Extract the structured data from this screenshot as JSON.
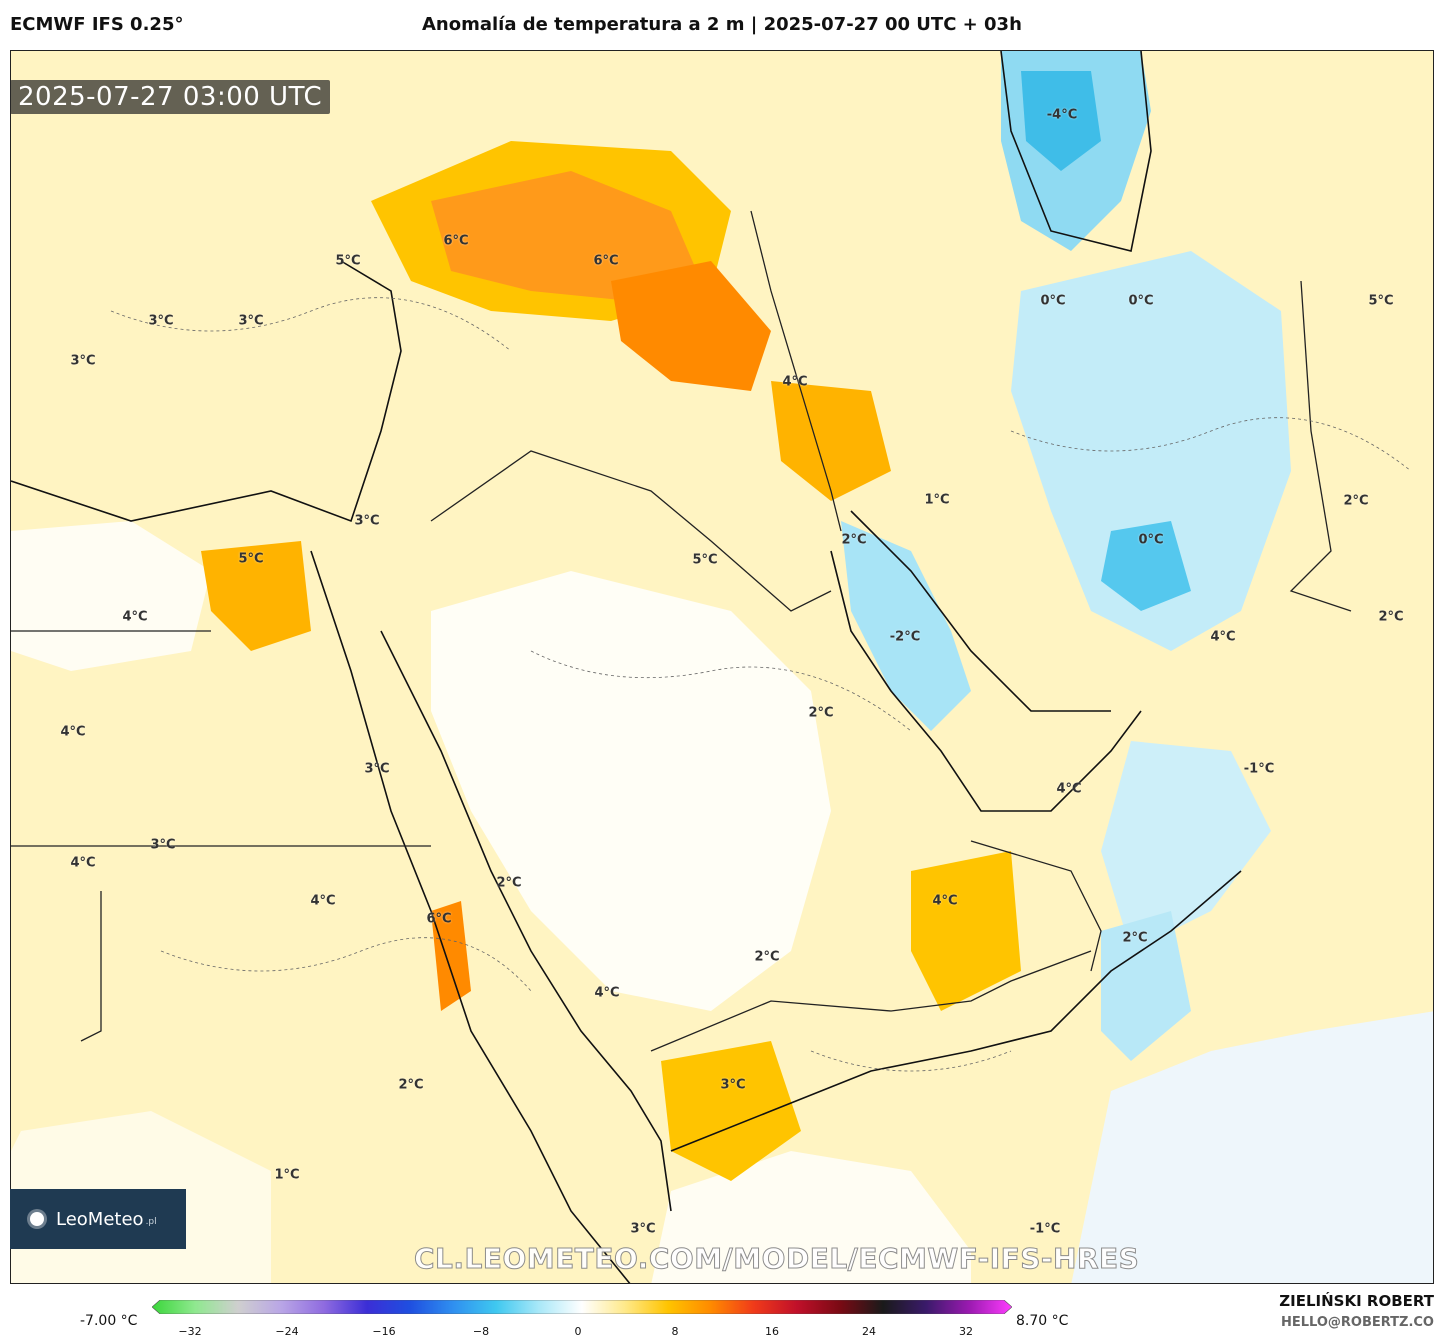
{
  "header": {
    "model": "ECMWF IFS 0.25°",
    "title": "Anomalía de temperatura a 2 m | 2025-07-27 00 UTC + 03h"
  },
  "valid_time": "2025-07-27 03:00 UTC",
  "watermark_url": "CL.LEOMETEO.COM/MODEL/ECMWF-IFS-HRES",
  "logo": {
    "name": "LeoMeteo",
    "tld": ".pl"
  },
  "map_labels": [
    {
      "text": "-4°C"
    },
    {
      "text": "6°C"
    },
    {
      "text": "6°C"
    },
    {
      "text": "5°C"
    },
    {
      "text": "3°C"
    },
    {
      "text": "3°C"
    },
    {
      "text": "3°C"
    },
    {
      "text": "0°C"
    },
    {
      "text": "0°C"
    },
    {
      "text": "5°C"
    },
    {
      "text": "4°C"
    },
    {
      "text": "1°C"
    },
    {
      "text": "3°C"
    },
    {
      "text": "5°C"
    },
    {
      "text": "2°C"
    },
    {
      "text": "5°C"
    },
    {
      "text": "0°C"
    },
    {
      "text": "2°C"
    },
    {
      "text": "4°C"
    },
    {
      "text": "-2°C"
    },
    {
      "text": "4°C"
    },
    {
      "text": "2°C"
    },
    {
      "text": "4°C"
    },
    {
      "text": "2°C"
    },
    {
      "text": "3°C"
    },
    {
      "text": "-1°C"
    },
    {
      "text": "4°C"
    },
    {
      "text": "3°C"
    },
    {
      "text": "4°C"
    },
    {
      "text": "2°C"
    },
    {
      "text": "4°C"
    },
    {
      "text": "6°C"
    },
    {
      "text": "4°C"
    },
    {
      "text": "2°C"
    },
    {
      "text": "2°C"
    },
    {
      "text": "4°C"
    },
    {
      "text": "2°C"
    },
    {
      "text": "3°C"
    },
    {
      "text": "1°C"
    },
    {
      "text": "3°C"
    },
    {
      "text": "-1°C"
    }
  ],
  "colorbar": {
    "min_label": "-7.00 °C",
    "max_label": "8.70 °C",
    "ticks": [
      "−32",
      "−24",
      "−16",
      "−8",
      "0",
      "8",
      "16",
      "24",
      "32"
    ],
    "colors": [
      "#3ad63a",
      "#8fe88f",
      "#cfcfcf",
      "#b9a6e6",
      "#8f6be0",
      "#3b2ed6",
      "#1f4fe0",
      "#2f8ff0",
      "#3fc8f0",
      "#a9e8f8",
      "#ffffff",
      "#ffe98a",
      "#ffc400",
      "#ff8a00",
      "#f03a1a",
      "#c0102a",
      "#7a0a14",
      "#1a1a1a",
      "#3a1a6a",
      "#9a1ab0",
      "#ff3cff"
    ]
  },
  "credits": {
    "author": "ZIELIŃSKI ROBERT",
    "email": "HELLO@ROBERTZ.CO"
  }
}
